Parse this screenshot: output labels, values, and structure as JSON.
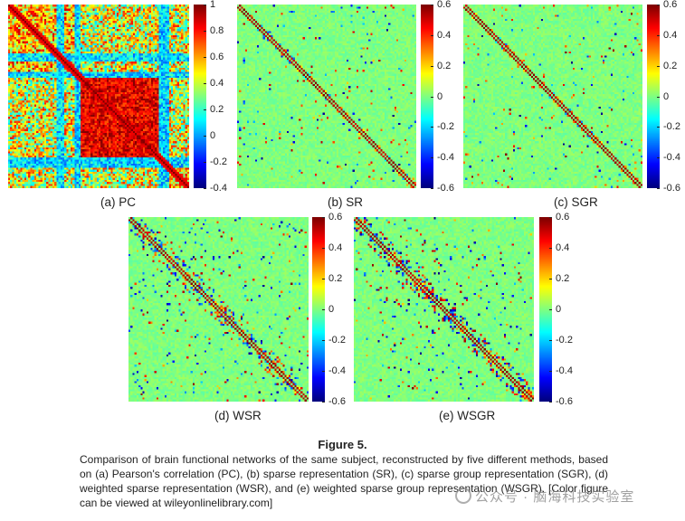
{
  "chart_data": [
    {
      "type": "heatmap",
      "id": "pc",
      "title": "(a) PC",
      "method": "Pearson's correlation",
      "matrix_size": 90,
      "colormap": "jet",
      "clim": [
        -0.4,
        1
      ],
      "colorbar_ticks": [
        "1",
        "0.8",
        "0.6",
        "0.4",
        "0.2",
        "0",
        "-0.2",
        "-0.4"
      ],
      "pattern": "dense correlation; strong positive block in central nodes"
    },
    {
      "type": "heatmap",
      "id": "sr",
      "title": "(b) SR",
      "method": "sparse representation",
      "matrix_size": 90,
      "colormap": "jet",
      "clim": [
        -0.6,
        0.6
      ],
      "colorbar_ticks": [
        "0.6",
        "0.4",
        "0.2",
        "0",
        "-0.2",
        "-0.4",
        "-0.6"
      ],
      "pattern": "sparse; strong diagonal band"
    },
    {
      "type": "heatmap",
      "id": "sgr",
      "title": "(c) SGR",
      "method": "sparse group representation",
      "matrix_size": 90,
      "colormap": "jet",
      "clim": [
        -0.6,
        0.6
      ],
      "colorbar_ticks": [
        "0.6",
        "0.4",
        "0.2",
        "0",
        "-0.2",
        "-0.4",
        "-0.6"
      ],
      "pattern": "sparse; strong diagonal band"
    },
    {
      "type": "heatmap",
      "id": "wsr",
      "title": "(d) WSR",
      "method": "weighted sparse representation",
      "matrix_size": 90,
      "colormap": "jet",
      "clim": [
        -0.6,
        0.6
      ],
      "colorbar_ticks": [
        "0.6",
        "0.4",
        "0.2",
        "0",
        "-0.2",
        "-0.4",
        "-0.6"
      ],
      "pattern": "sparse; diagonal band with local clusters"
    },
    {
      "type": "heatmap",
      "id": "wsgr",
      "title": "(e) WSGR",
      "method": "weighted sparse group representation",
      "matrix_size": 90,
      "colormap": "jet",
      "clim": [
        -0.6,
        0.6
      ],
      "colorbar_ticks": [
        "0.6",
        "0.4",
        "0.2",
        "0",
        "-0.2",
        "-0.4",
        "-0.6"
      ],
      "pattern": "sparse; diagonal band with local clusters"
    }
  ],
  "figure": {
    "title": "Figure 5.",
    "caption": "Comparison of brain functional networks of the same subject, reconstructed by five different methods, based on (a) Pearson's correlation (PC), (b) sparse representation (SR), (c) sparse group representation (SGR), (d) weighted sparse representation (WSR), and (e) weighted sparse group representation (WSGR). [Color figure can be viewed at wileyonlinelibrary.com]"
  },
  "watermark": {
    "text": "公众号 · 脑海科技实验室"
  }
}
